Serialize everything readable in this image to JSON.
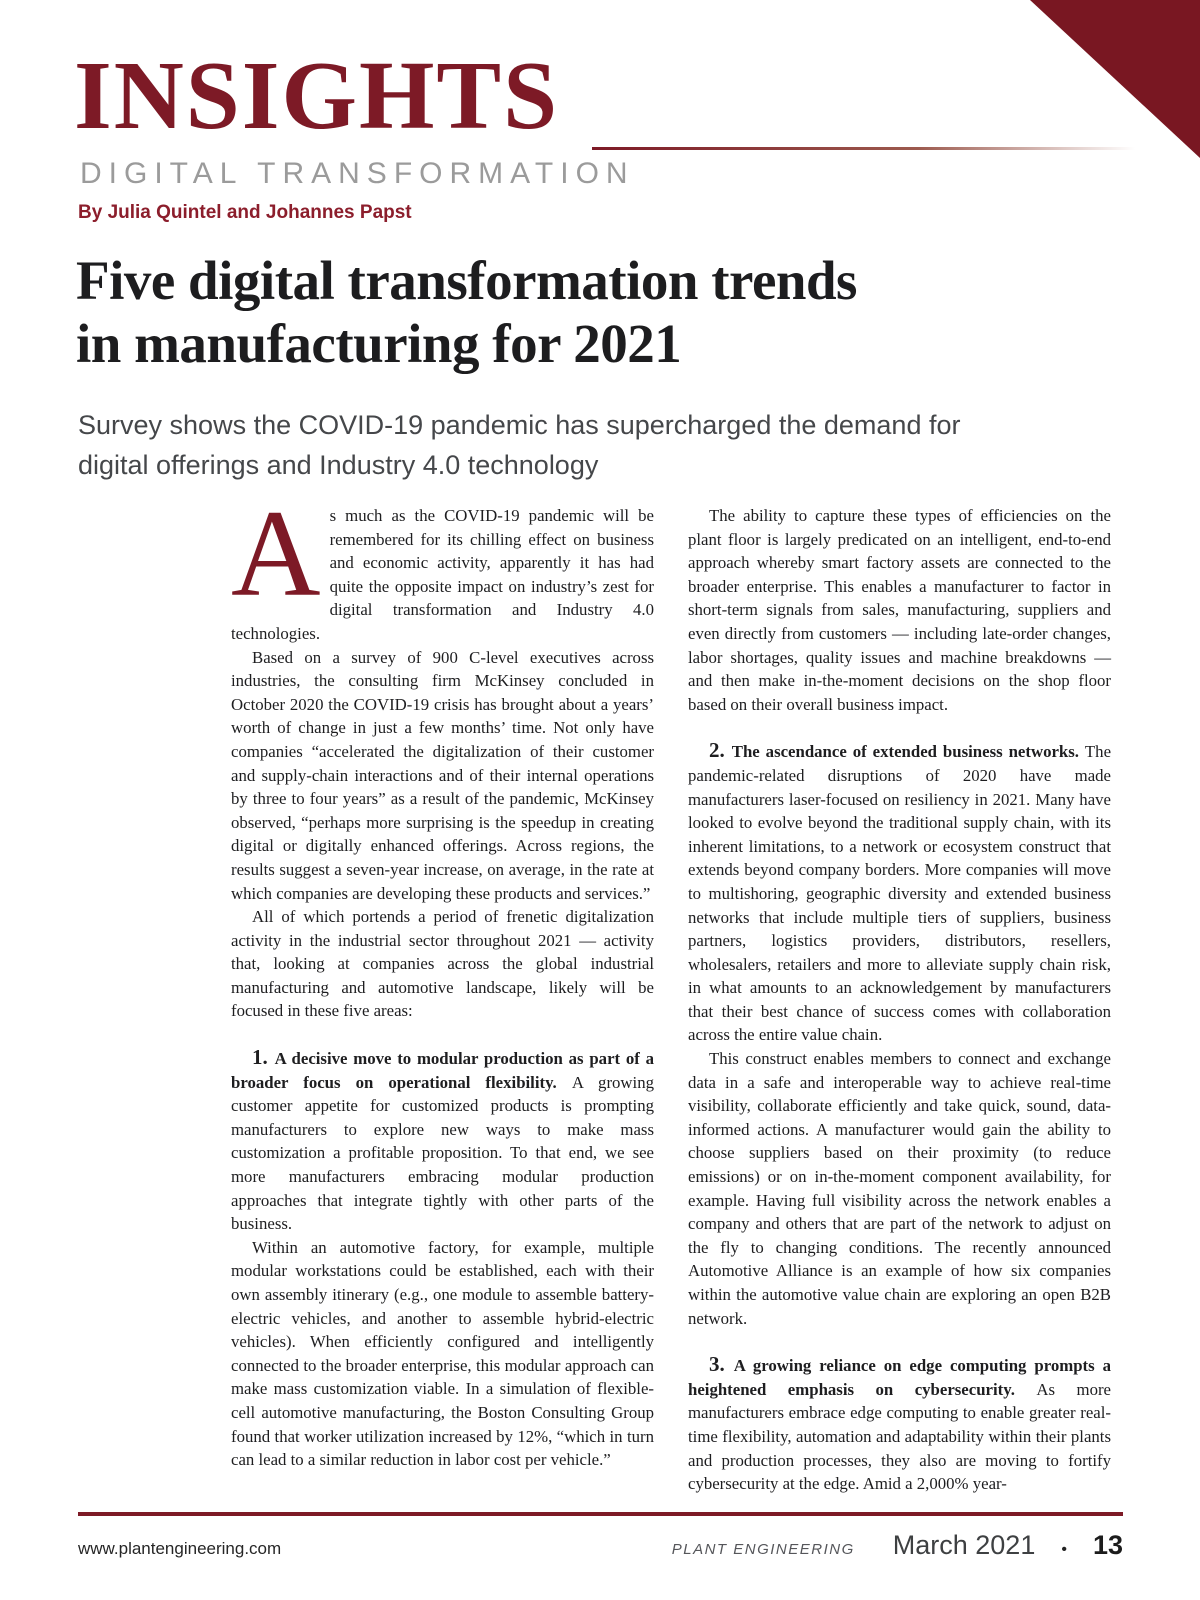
{
  "masthead": {
    "brand": "INSIGHTS",
    "kicker": "DIGITAL TRANSFORMATION",
    "byline": "By Julia Quintel and Johannes Papst"
  },
  "article": {
    "title_lines": [
      "Five digital transformation trends",
      "in manufacturing for 2021"
    ],
    "standfirst_lines": [
      "Survey shows the COVID-19 pandemic has supercharged the demand for",
      "digital offerings and Industry 4.0 technology"
    ],
    "columns": {
      "left": [
        {
          "type": "dropcap",
          "text": "As much as the COVID-19 pandemic will be remembered for its chilling effect on business and economic activity, apparently it has had quite the opposite impact on industry’s zest for digital transformation and Industry 4.0 technologies."
        },
        {
          "type": "body",
          "text": "Based on a survey of 900 C-level executives across industries, the consulting firm McKinsey concluded in October 2020 the COVID-19 crisis has brought about a years’ worth of change in just a few months’ time. Not only have companies “accelerated the digitalization of their customer and supply-chain interactions and of their internal operations by three to four years” as a result of the pandemic, McKinsey observed, “perhaps more surprising is the speedup in creating digital or digitally enhanced offerings. Across regions, the results suggest a seven-year increase, on average, in the rate at which companies are developing these products and services.”"
        },
        {
          "type": "body",
          "text": "All of which portends a period of frenetic digitalization activity in the industrial sector throughout 2021 — activity that, looking at companies across the global industrial manufacturing and automotive landscape, likely will be focused in these five areas:"
        },
        {
          "type": "numbered",
          "number": "1.",
          "lead": "A decisive move to modular production as part of a broader focus on operational flexibility.",
          "text": "A growing customer appetite for customized products is prompting manufacturers to explore new ways to make mass customization a profitable proposition. To that end, we see more manufacturers embracing modular production approaches that integrate tightly with other parts of the business."
        },
        {
          "type": "body",
          "text": "Within an automotive factory, for example, multiple modular workstations could be established, each with their own assembly itinerary (e.g., one module to assemble battery-electric vehicles, and another to assemble hybrid-electric vehicles). When efficiently configured and intelligently connected to the broader enterprise, this modular approach can make mass customization viable. In a simulation of flexible-cell automotive manufacturing, the Boston Consulting Group found that worker utilization increased by 12%, “which in turn can lead to a similar reduction in labor cost per vehicle.”"
        }
      ],
      "right": [
        {
          "type": "body",
          "text": "The ability to capture these types of efficiencies on the plant floor is largely predicated on an intelligent, end-to-end approach whereby smart factory assets are connected to the broader enterprise. This enables a manufacturer to factor in short-term signals from sales, manufacturing, suppliers and even directly from customers — including late-order changes, labor shortages, quality issues and machine breakdowns — and then make in-the-moment decisions on the shop floor based on their overall business impact."
        },
        {
          "type": "numbered",
          "number": "2.",
          "lead": "The ascendance of extended business networks.",
          "text": "The pandemic-related disruptions of 2020 have made manufacturers laser-focused on resiliency in 2021. Many have looked to evolve beyond the traditional supply chain, with its inherent limitations, to a network or ecosystem construct that extends beyond company borders. More companies will move to multishoring, geographic diversity and extended business networks that include multiple tiers of suppliers, business partners, logistics providers, distributors, resellers, wholesalers, retailers and more to alleviate supply chain risk, in what amounts to an acknowledgement by manufacturers that their best chance of success comes with collaboration across the entire value chain."
        },
        {
          "type": "body",
          "text": "This construct enables members to connect and exchange data in a safe and interoperable way to achieve real-time visibility, collaborate efficiently and take quick, sound, data-informed actions. A manufacturer would gain the ability to choose suppliers based on their proximity (to reduce emissions) or on in-the-moment component availability, for example. Having full visibility across the network enables a company and others that are part of the network to adjust on the fly to changing conditions. The recently announced Automotive Alliance is an example of how six companies within the automotive value chain are exploring an open B2B network."
        },
        {
          "type": "numbered",
          "number": "3.",
          "lead": "A growing reliance on edge computing prompts a heightened emphasis on cybersecurity.",
          "text": "As more manufacturers embrace edge computing to enable greater real-time flexibility, automation and adaptability within their plants and production processes, they also are moving to fortify cybersecurity at the edge. Amid a 2,000% year-"
        }
      ]
    }
  },
  "footer": {
    "website": "www.plantengineering.com",
    "publication": "PLANT ENGINEERING",
    "issue": "March 2021",
    "separator": "•",
    "page_number": "13"
  },
  "colors": {
    "maroon": "#7d1a26",
    "maroon_triangle": "#791722",
    "maroon_byline": "#8c1e2c",
    "kicker_gray": "#9b9b9b",
    "standfirst_gray": "#45474a",
    "body_black": "#1e1e20",
    "title_black": "#1d1d1f"
  }
}
